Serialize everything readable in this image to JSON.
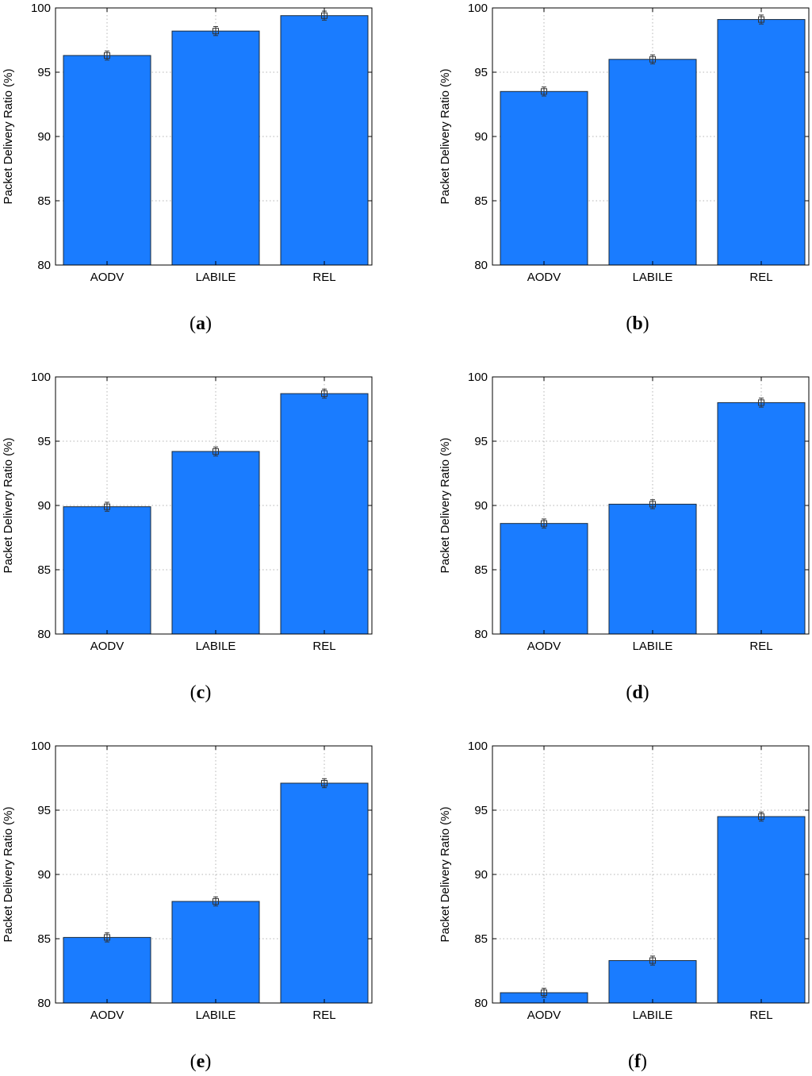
{
  "chart_data": [
    {
      "type": "bar",
      "panel": "a",
      "categories": [
        "AODV",
        "LABILE",
        "REL"
      ],
      "values": [
        96.3,
        98.2,
        99.4
      ],
      "errors": [
        0.35,
        0.35,
        0.35
      ],
      "ylabel": "Packet Delivery Ratio (%)",
      "ylim": [
        80,
        100
      ],
      "yticks": [
        80,
        85,
        90,
        95,
        100
      ],
      "grid": true,
      "bar_color": "#1a7cff"
    },
    {
      "type": "bar",
      "panel": "b",
      "categories": [
        "AODV",
        "LABILE",
        "REL"
      ],
      "values": [
        93.5,
        96.0,
        99.1
      ],
      "errors": [
        0.35,
        0.35,
        0.35
      ],
      "ylabel": "Packet Delivery Ratio (%)",
      "ylim": [
        80,
        100
      ],
      "yticks": [
        80,
        85,
        90,
        95,
        100
      ],
      "grid": true,
      "bar_color": "#1a7cff"
    },
    {
      "type": "bar",
      "panel": "c",
      "categories": [
        "AODV",
        "LABILE",
        "REL"
      ],
      "values": [
        89.9,
        94.2,
        98.7
      ],
      "errors": [
        0.35,
        0.35,
        0.35
      ],
      "ylabel": "Packet Delivery Ratio (%)",
      "ylim": [
        80,
        100
      ],
      "yticks": [
        80,
        85,
        90,
        95,
        100
      ],
      "grid": true,
      "bar_color": "#1a7cff"
    },
    {
      "type": "bar",
      "panel": "d",
      "categories": [
        "AODV",
        "LABILE",
        "REL"
      ],
      "values": [
        88.6,
        90.1,
        98.0
      ],
      "errors": [
        0.35,
        0.35,
        0.35
      ],
      "ylabel": "Packet Delivery Ratio (%)",
      "ylim": [
        80,
        100
      ],
      "yticks": [
        80,
        85,
        90,
        95,
        100
      ],
      "grid": true,
      "bar_color": "#1a7cff"
    },
    {
      "type": "bar",
      "panel": "e",
      "categories": [
        "AODV",
        "LABILE",
        "REL"
      ],
      "values": [
        85.1,
        87.9,
        97.1
      ],
      "errors": [
        0.35,
        0.35,
        0.35
      ],
      "ylabel": "Packet Delivery Ratio (%)",
      "ylim": [
        80,
        100
      ],
      "yticks": [
        80,
        85,
        90,
        95,
        100
      ],
      "grid": true,
      "bar_color": "#1a7cff"
    },
    {
      "type": "bar",
      "panel": "f",
      "categories": [
        "AODV",
        "LABILE",
        "REL"
      ],
      "values": [
        80.8,
        83.3,
        94.5
      ],
      "errors": [
        0.35,
        0.35,
        0.35
      ],
      "ylabel": "Packet Delivery Ratio (%)",
      "ylim": [
        80,
        100
      ],
      "yticks": [
        80,
        85,
        90,
        95,
        100
      ],
      "grid": true,
      "bar_color": "#1a7cff"
    }
  ],
  "captions": {
    "a": "a",
    "b": "b",
    "c": "c",
    "d": "d",
    "e": "e",
    "f": "f"
  }
}
